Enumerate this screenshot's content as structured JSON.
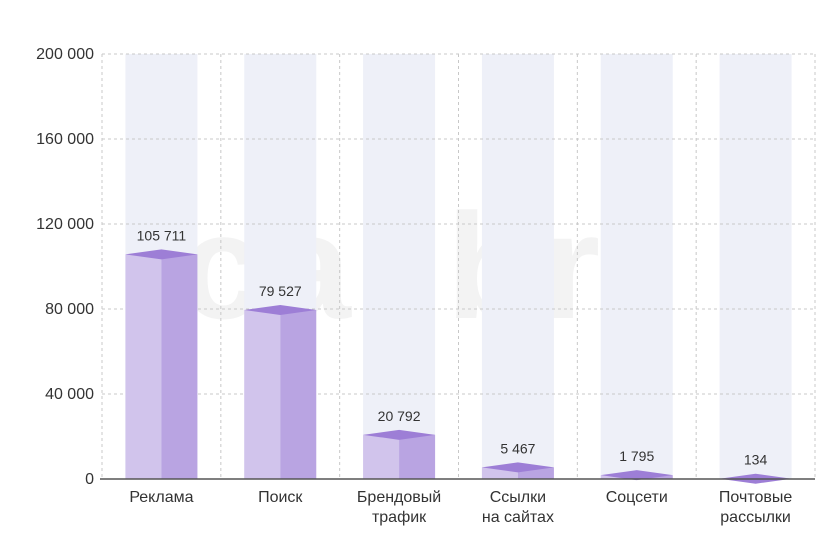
{
  "watermark": "calibri",
  "chart_data": {
    "type": "bar",
    "categories": [
      [
        "Реклама"
      ],
      [
        "Поиск"
      ],
      [
        "Брендовый",
        "трафик"
      ],
      [
        "Ссылки",
        "на сайтах"
      ],
      [
        "Соцсети"
      ],
      [
        "Почтовые",
        "рассылки"
      ]
    ],
    "values": [
      105711,
      79527,
      20792,
      5467,
      1795,
      134
    ],
    "value_labels": [
      "105 711",
      "79 527",
      "20 792",
      "5 467",
      "1 795",
      "134"
    ],
    "y_ticks": [
      0,
      40000,
      80000,
      120000,
      160000,
      200000
    ],
    "y_tick_labels": [
      "0",
      "40 000",
      "80 000",
      "120 000",
      "160 000",
      "200 000"
    ],
    "ylim": [
      0,
      200000
    ],
    "grid": true,
    "colors": {
      "bar_front": "#d1c4ec",
      "bar_side": "#b9a4e2",
      "bar_top": "#9d7ed6",
      "track": "#eef0f8",
      "grid": "#c8c8c8",
      "axis": "#555555"
    }
  }
}
